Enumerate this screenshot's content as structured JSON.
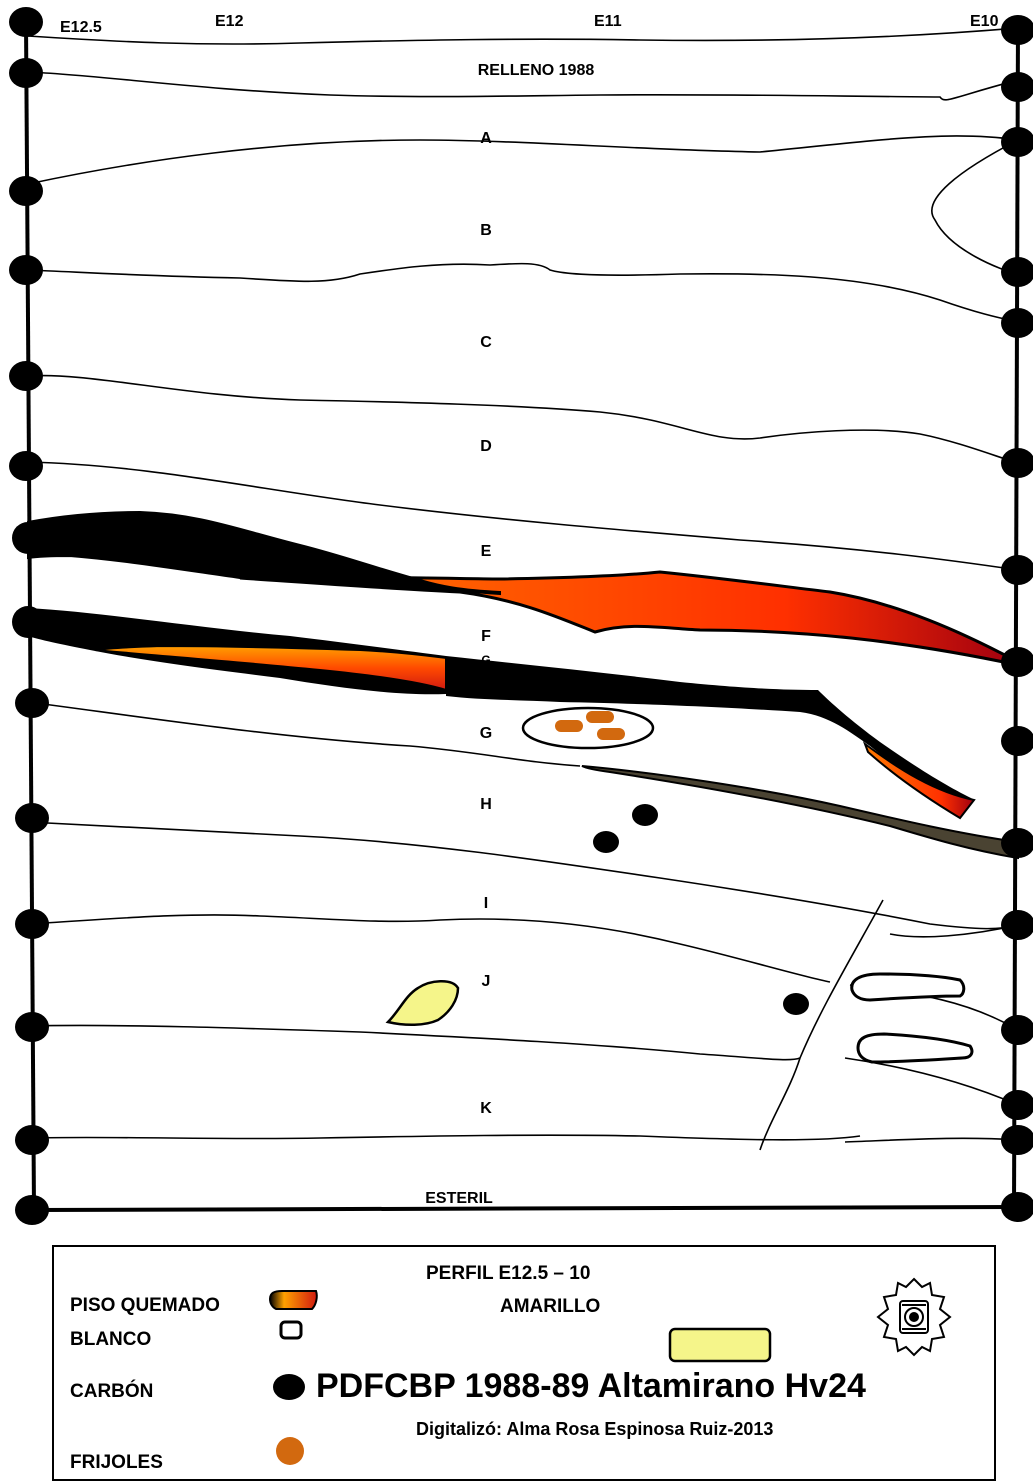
{
  "profile": {
    "grid_labels": [
      "E12.5",
      "E12",
      "E11",
      "E10"
    ],
    "layers": [
      "RELLENO 1988",
      "A",
      "B",
      "C",
      "D",
      "E",
      "F",
      "G",
      "G",
      "H",
      "I",
      "J",
      "K",
      "ESTERIL"
    ]
  },
  "legend": {
    "title": "PERFIL E12.5 – 10",
    "piso_quemado": "PISO QUEMADO",
    "blanco": "BLANCO",
    "amarillo": "AMARILLO",
    "carbon": "CARBÓN",
    "frijoles": "FRIJOLES",
    "main_title": "PDFCBP 1988-89 Altamirano Hv24",
    "credit": "Digitalizó: Alma Rosa Espinosa Ruiz-2013"
  },
  "colors": {
    "burnt_dark": "#b00020",
    "burnt_mid": "#ff4a00",
    "burnt_light": "#ffa000",
    "yellow": "#f5f58a",
    "bean": "#d2690f",
    "dark_lens": "#4a4332"
  },
  "icons": [
    "emblem-icon"
  ]
}
